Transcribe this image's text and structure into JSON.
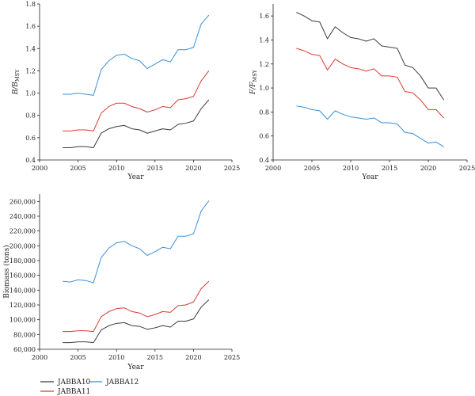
{
  "charts": [
    {
      "type": "line",
      "xlabel": "Year",
      "ylabel": "B/B_MSY",
      "ylabel_main": "B/B",
      "ylabel_sub": "MSY",
      "xlim": [
        2000,
        2025
      ],
      "ylim": [
        0.4,
        1.8
      ],
      "xticks": [
        2000,
        2005,
        2010,
        2015,
        2020,
        2025
      ],
      "yticks": [
        0.4,
        0.6,
        0.8,
        1.0,
        1.2,
        1.4,
        1.6,
        1.8
      ],
      "ytick_labels": [
        "0.4",
        "0.6",
        "0.8",
        "1.0",
        "1.2",
        "1.4",
        "1.6",
        "1.8"
      ],
      "x": [
        2003,
        2004,
        2005,
        2006,
        2007,
        2008,
        2009,
        2010,
        2011,
        2012,
        2013,
        2014,
        2015,
        2016,
        2017,
        2018,
        2019,
        2020,
        2021,
        2022
      ],
      "series": [
        {
          "name": "JABBA10",
          "values": [
            0.51,
            0.51,
            0.52,
            0.52,
            0.51,
            0.64,
            0.68,
            0.7,
            0.71,
            0.68,
            0.67,
            0.64,
            0.66,
            0.68,
            0.67,
            0.72,
            0.73,
            0.75,
            0.86,
            0.94
          ]
        },
        {
          "name": "JABBA11",
          "values": [
            0.66,
            0.66,
            0.67,
            0.67,
            0.66,
            0.82,
            0.88,
            0.91,
            0.91,
            0.88,
            0.86,
            0.83,
            0.85,
            0.88,
            0.87,
            0.94,
            0.95,
            0.97,
            1.11,
            1.2
          ]
        },
        {
          "name": "JABBA12",
          "values": [
            0.99,
            0.99,
            1.0,
            0.99,
            0.98,
            1.21,
            1.29,
            1.34,
            1.35,
            1.31,
            1.29,
            1.22,
            1.26,
            1.3,
            1.28,
            1.39,
            1.39,
            1.41,
            1.62,
            1.7
          ]
        }
      ]
    },
    {
      "type": "line",
      "xlabel": "Year",
      "ylabel": "F/F_MSY",
      "ylabel_main": "F/F",
      "ylabel_sub": "MSY",
      "xlim": [
        2000,
        2025
      ],
      "ylim": [
        0.4,
        1.7
      ],
      "xticks": [
        2000,
        2005,
        2010,
        2015,
        2020,
        2025
      ],
      "yticks": [
        0.4,
        0.6,
        0.8,
        1.0,
        1.2,
        1.4,
        1.6
      ],
      "ytick_labels": [
        "0.4",
        "0.6",
        "0.8",
        "1.0",
        "1.2",
        "1.4",
        "1.6"
      ],
      "x": [
        2003,
        2004,
        2005,
        2006,
        2007,
        2008,
        2009,
        2010,
        2011,
        2012,
        2013,
        2014,
        2015,
        2016,
        2017,
        2018,
        2019,
        2020,
        2021,
        2022
      ],
      "series": [
        {
          "name": "JABBA10",
          "values": [
            1.63,
            1.6,
            1.56,
            1.55,
            1.41,
            1.51,
            1.46,
            1.42,
            1.41,
            1.39,
            1.41,
            1.35,
            1.34,
            1.33,
            1.19,
            1.17,
            1.1,
            1.0,
            1.0,
            0.9
          ]
        },
        {
          "name": "JABBA11",
          "values": [
            1.33,
            1.31,
            1.28,
            1.27,
            1.15,
            1.24,
            1.2,
            1.17,
            1.16,
            1.14,
            1.16,
            1.1,
            1.1,
            1.09,
            0.97,
            0.96,
            0.9,
            0.82,
            0.82,
            0.75
          ]
        },
        {
          "name": "JABBA12",
          "values": [
            0.85,
            0.84,
            0.82,
            0.81,
            0.74,
            0.81,
            0.78,
            0.76,
            0.75,
            0.74,
            0.75,
            0.71,
            0.71,
            0.7,
            0.63,
            0.62,
            0.58,
            0.54,
            0.55,
            0.51
          ]
        }
      ]
    },
    {
      "type": "line",
      "xlabel": "Year",
      "ylabel": "Biomass (tons)",
      "xlim": [
        2000,
        2025
      ],
      "ylim": [
        60000,
        270000
      ],
      "xticks": [
        2000,
        2005,
        2010,
        2015,
        2020,
        2025
      ],
      "yticks": [
        60000,
        80000,
        100000,
        120000,
        140000,
        160000,
        180000,
        200000,
        220000,
        240000,
        260000
      ],
      "ytick_labels": [
        "60,000",
        "80,000",
        "100,000",
        "120,000",
        "140,000",
        "160,000",
        "180,000",
        "200,000",
        "220,000",
        "240,000",
        "260,000"
      ],
      "x": [
        2003,
        2004,
        2005,
        2006,
        2007,
        2008,
        2009,
        2010,
        2011,
        2012,
        2013,
        2014,
        2015,
        2016,
        2017,
        2018,
        2019,
        2020,
        2021,
        2022
      ],
      "series": [
        {
          "name": "JABBA10",
          "values": [
            69000,
            69000,
            70000,
            70000,
            69000,
            86000,
            92000,
            95000,
            96000,
            92000,
            91000,
            87000,
            89000,
            92000,
            90000,
            98000,
            98000,
            101000,
            117000,
            127000
          ]
        },
        {
          "name": "JABBA11",
          "values": [
            84000,
            84000,
            85000,
            85000,
            84000,
            104000,
            111000,
            115000,
            116000,
            111000,
            109000,
            104000,
            107000,
            111000,
            110000,
            119000,
            120000,
            124000,
            142000,
            152000
          ]
        },
        {
          "name": "JABBA12",
          "values": [
            152000,
            151000,
            154000,
            153000,
            150000,
            184000,
            197000,
            204000,
            206000,
            200000,
            196000,
            187000,
            192000,
            198000,
            196000,
            213000,
            213000,
            216000,
            247000,
            261000
          ]
        }
      ]
    }
  ],
  "legend": {
    "items": [
      {
        "name": "JABBA10",
        "color": "#3b3b3b"
      },
      {
        "name": "JABBA11",
        "color": "#d83a34"
      },
      {
        "name": "JABBA12",
        "color": "#3a8fd8"
      }
    ]
  }
}
